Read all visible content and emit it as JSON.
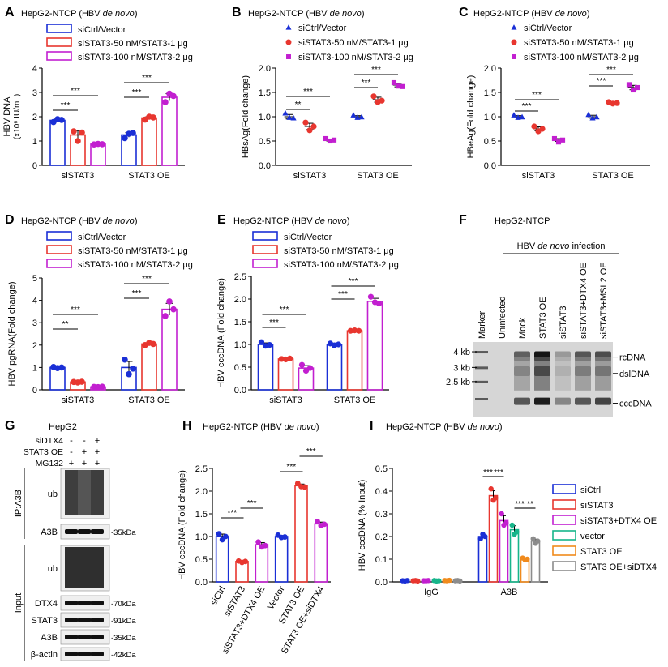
{
  "colors": {
    "blue": "#1a2fd6",
    "red": "#e8362f",
    "magenta": "#c21fd0",
    "green": "#17b58a",
    "orange": "#f08a1c",
    "gray": "#8c8c8c"
  },
  "chart_data": [
    {
      "id": "A",
      "letter": "A",
      "type": "bar",
      "style": "open-bars-dots",
      "title": "HepG2-NTCP (HBV de novo)",
      "ylabel": "HBV DNA (x10^6 IU/mL)",
      "ylabel_l1": "HBV DNA",
      "ylabel_l2": "(x10⁶ IU/mL)",
      "ylim": [
        0,
        4
      ],
      "yticks": [
        0,
        1,
        2,
        3,
        4
      ],
      "groups": [
        "siSTAT3",
        "STAT3 OE"
      ],
      "series": [
        {
          "name": "siCtrl/Vector",
          "color": "blue",
          "values": [
            1.85,
            1.25
          ],
          "points": [
            [
              1.78,
              1.9,
              1.87
            ],
            [
              1.12,
              1.3,
              1.33
            ]
          ]
        },
        {
          "name": "siSTAT3-50 nM/STAT3-1 μg",
          "color": "red",
          "values": [
            1.25,
            1.95
          ],
          "points": [
            [
              1.4,
              1.0,
              1.35
            ],
            [
              1.88,
              2.0,
              1.97
            ]
          ]
        },
        {
          "name": "siSTAT3-100 nM/STAT3-2 μg",
          "color": "magenta",
          "values": [
            0.87,
            2.8
          ],
          "points": [
            [
              0.86,
              0.88,
              0.87
            ],
            [
              2.6,
              2.95,
              2.85
            ]
          ]
        }
      ],
      "sig": [
        {
          "g": 0,
          "a": 0,
          "b": 1,
          "label": "***"
        },
        {
          "g": 0,
          "a": 0,
          "b": 2,
          "label": "***"
        },
        {
          "g": 1,
          "a": 0,
          "b": 1,
          "label": "***"
        },
        {
          "g": 1,
          "a": 0,
          "b": 2,
          "label": "***"
        }
      ]
    },
    {
      "id": "B",
      "letter": "B",
      "type": "scatter",
      "style": "markers",
      "title": "HepG2-NTCP (HBV de novo)",
      "ylabel": "HBsAg(Fold change)",
      "ylim": [
        0,
        2
      ],
      "yticks": [
        0.0,
        0.5,
        1.0,
        1.5,
        2.0
      ],
      "groups": [
        "siSTAT3",
        "STAT3 OE"
      ],
      "series": [
        {
          "name": "siCtrl/Vector",
          "color": "blue",
          "marker": "triangle",
          "values": [
            1.0,
            1.0
          ],
          "points": [
            [
              1.07,
              0.98,
              0.97
            ],
            [
              1.03,
              0.98,
              0.99
            ]
          ]
        },
        {
          "name": "siSTAT3-50 nM/STAT3-1 μg",
          "color": "red",
          "marker": "circle",
          "values": [
            0.8,
            1.35
          ],
          "points": [
            [
              0.88,
              0.72,
              0.8
            ],
            [
              1.42,
              1.3,
              1.33
            ]
          ]
        },
        {
          "name": "siSTAT3-100 nM/STAT3-2 μg",
          "color": "magenta",
          "marker": "square",
          "values": [
            0.52,
            1.65
          ],
          "points": [
            [
              0.55,
              0.5,
              0.52
            ],
            [
              1.7,
              1.63,
              1.62
            ]
          ]
        }
      ],
      "sig": [
        {
          "g": 0,
          "a": 0,
          "b": 1,
          "label": "**"
        },
        {
          "g": 0,
          "a": 0,
          "b": 2,
          "label": "***"
        },
        {
          "g": 1,
          "a": 0,
          "b": 1,
          "label": "***"
        },
        {
          "g": 1,
          "a": 0,
          "b": 2,
          "label": "***"
        }
      ]
    },
    {
      "id": "C",
      "letter": "C",
      "type": "scatter",
      "style": "markers",
      "title": "HepG2-NTCP (HBV de novo)",
      "ylabel": "HBeAg(Fold change)",
      "ylim": [
        0,
        2
      ],
      "yticks": [
        0.0,
        0.5,
        1.0,
        1.5,
        2.0
      ],
      "groups": [
        "siSTAT3",
        "STAT3 OE"
      ],
      "series": [
        {
          "name": "siCtrl/Vector",
          "color": "blue",
          "marker": "triangle",
          "values": [
            1.0,
            1.0
          ],
          "points": [
            [
              1.03,
              0.98,
              0.99
            ],
            [
              1.04,
              0.97,
              0.99
            ]
          ]
        },
        {
          "name": "siSTAT3-50 nM/STAT3-1 μg",
          "color": "red",
          "marker": "circle",
          "values": [
            0.75,
            1.28
          ],
          "points": [
            [
              0.8,
              0.7,
              0.75
            ],
            [
              1.3,
              1.27,
              1.28
            ]
          ]
        },
        {
          "name": "siSTAT3-100 nM/STAT3-2 μg",
          "color": "magenta",
          "marker": "square",
          "values": [
            0.52,
            1.6
          ],
          "points": [
            [
              0.55,
              0.48,
              0.52
            ],
            [
              1.66,
              1.55,
              1.6
            ]
          ]
        }
      ],
      "sig": [
        {
          "g": 0,
          "a": 0,
          "b": 1,
          "label": "***"
        },
        {
          "g": 0,
          "a": 0,
          "b": 2,
          "label": "***"
        },
        {
          "g": 1,
          "a": 0,
          "b": 1,
          "label": "***"
        },
        {
          "g": 1,
          "a": 0,
          "b": 2,
          "label": "***"
        }
      ]
    },
    {
      "id": "D",
      "letter": "D",
      "type": "bar",
      "style": "open-bars-dots",
      "title": "HepG2-NTCP (HBV de novo)",
      "ylabel": "HBV pgRNA(Fold change)",
      "ylim": [
        0,
        5
      ],
      "yticks": [
        0,
        1,
        2,
        3,
        4,
        5
      ],
      "groups": [
        "siSTAT3",
        "STAT3 OE"
      ],
      "series": [
        {
          "name": "siCtrl/Vector",
          "color": "blue",
          "values": [
            1.0,
            1.0
          ],
          "points": [
            [
              1.02,
              0.97,
              1.0
            ],
            [
              1.35,
              0.7,
              0.95
            ]
          ]
        },
        {
          "name": "siSTAT3-50 nM/STAT3-1 μg",
          "color": "red",
          "values": [
            0.35,
            2.05
          ],
          "points": [
            [
              0.35,
              0.33,
              0.36
            ],
            [
              2.0,
              2.1,
              2.05
            ]
          ]
        },
        {
          "name": "siSTAT3-100 nM/STAT3-2 μg",
          "color": "magenta",
          "values": [
            0.13,
            3.6
          ],
          "points": [
            [
              0.13,
              0.12,
              0.14
            ],
            [
              3.3,
              3.95,
              3.6
            ]
          ]
        }
      ],
      "sig": [
        {
          "g": 0,
          "a": 0,
          "b": 1,
          "label": "**"
        },
        {
          "g": 0,
          "a": 0,
          "b": 2,
          "label": "***"
        },
        {
          "g": 1,
          "a": 0,
          "b": 1,
          "label": "***"
        },
        {
          "g": 1,
          "a": 0,
          "b": 2,
          "label": "***"
        }
      ]
    },
    {
      "id": "E",
      "letter": "E",
      "type": "bar",
      "style": "open-bars-dots",
      "title": "HepG2-NTCP (HBV de novo)",
      "ylabel": "HBV cccDNA (Fold change)",
      "ylim": [
        0,
        2.5
      ],
      "yticks": [
        0.0,
        0.5,
        1.0,
        1.5,
        2.0,
        2.5
      ],
      "groups": [
        "siSTAT3",
        "STAT3 OE"
      ],
      "series": [
        {
          "name": "siCtrl/Vector",
          "color": "blue",
          "values": [
            1.0,
            1.0
          ],
          "points": [
            [
              1.05,
              0.97,
              0.99
            ],
            [
              1.02,
              0.98,
              1.0
            ]
          ]
        },
        {
          "name": "siSTAT3-50 nM/STAT3-1 μg",
          "color": "red",
          "values": [
            0.68,
            1.3
          ],
          "points": [
            [
              0.68,
              0.67,
              0.69
            ],
            [
              1.3,
              1.31,
              1.3
            ]
          ]
        },
        {
          "name": "siSTAT3-100 nM/STAT3-2 μg",
          "color": "magenta",
          "values": [
            0.48,
            1.95
          ],
          "points": [
            [
              0.55,
              0.42,
              0.48
            ],
            [
              2.05,
              1.93,
              1.9
            ]
          ]
        }
      ],
      "sig": [
        {
          "g": 0,
          "a": 0,
          "b": 1,
          "label": "***"
        },
        {
          "g": 0,
          "a": 0,
          "b": 2,
          "label": "***"
        },
        {
          "g": 1,
          "a": 0,
          "b": 1,
          "label": "***"
        },
        {
          "g": 1,
          "a": 0,
          "b": 2,
          "label": "***"
        }
      ]
    },
    {
      "id": "H",
      "letter": "H",
      "type": "bar",
      "style": "open-bars-dots",
      "title": "HepG2-NTCP (HBV de novo)",
      "ylabel": "HBV cccDNA (Fold change)",
      "ylim": [
        0,
        2.5
      ],
      "yticks": [
        0.0,
        0.5,
        1.0,
        1.5,
        2.0,
        2.5
      ],
      "categories": [
        "siCtrl",
        "siSTAT3",
        "siSTAT3+DTX4 OE",
        "Vector",
        "STAT3 OE",
        "STAT3 OE+siDTX4"
      ],
      "series": [
        {
          "name": "values",
          "colors": [
            "blue",
            "red",
            "magenta",
            "blue",
            "red",
            "magenta"
          ],
          "values": [
            1.0,
            0.45,
            0.82,
            1.0,
            2.12,
            1.28
          ],
          "points": [
            [
              1.06,
              0.93,
              1.0
            ],
            [
              0.46,
              0.43,
              0.45
            ],
            [
              0.88,
              0.77,
              0.8
            ],
            [
              1.03,
              0.98,
              0.99
            ],
            [
              2.17,
              2.1,
              2.09
            ],
            [
              1.33,
              1.24,
              1.27
            ]
          ]
        }
      ],
      "sig": [
        {
          "a": 0,
          "b": 1,
          "label": "***"
        },
        {
          "a": 1,
          "b": 2,
          "label": "***"
        },
        {
          "a": 3,
          "b": 4,
          "label": "***"
        },
        {
          "a": 4,
          "b": 5,
          "label": "***"
        }
      ]
    },
    {
      "id": "I",
      "letter": "I",
      "type": "bar",
      "style": "open-bars-dots",
      "title": "HepG2-NTCP (HBV de novo)",
      "ylabel": "HBV cccDNA (% Input)",
      "ylim": [
        0,
        0.5
      ],
      "yticks": [
        0.0,
        0.1,
        0.2,
        0.3,
        0.4,
        0.5
      ],
      "groups": [
        "IgG",
        "A3B"
      ],
      "series": [
        {
          "name": "siCtrl",
          "color": "blue",
          "values": [
            0.005,
            0.2
          ],
          "points": [
            [
              0.005,
              0.004,
              0.006
            ],
            [
              0.19,
              0.21,
              0.2
            ]
          ]
        },
        {
          "name": "siSTAT3",
          "color": "red",
          "values": [
            0.005,
            0.38
          ],
          "points": [
            [
              0.005,
              0.006,
              0.004
            ],
            [
              0.41,
              0.36,
              0.37
            ]
          ]
        },
        {
          "name": "siSTAT3+DTX4 OE",
          "color": "magenta",
          "values": [
            0.005,
            0.27
          ],
          "points": [
            [
              0.005,
              0.005,
              0.006
            ],
            [
              0.3,
              0.25,
              0.26
            ]
          ]
        },
        {
          "name": "vector",
          "color": "green",
          "values": [
            0.005,
            0.23
          ],
          "points": [
            [
              0.006,
              0.004,
              0.005
            ],
            [
              0.25,
              0.21,
              0.22
            ]
          ]
        },
        {
          "name": "STAT3 OE",
          "color": "orange",
          "values": [
            0.006,
            0.1
          ],
          "points": [
            [
              0.006,
              0.005,
              0.007
            ],
            [
              0.105,
              0.098,
              0.1
            ]
          ]
        },
        {
          "name": "STAT3 OE+siDTX4",
          "color": "gray",
          "values": [
            0.005,
            0.18
          ],
          "points": [
            [
              0.005,
              0.006,
              0.004
            ],
            [
              0.19,
              0.17,
              0.18
            ]
          ]
        }
      ],
      "sig": [
        {
          "g": 1,
          "a": 0,
          "b": 1,
          "label": "***"
        },
        {
          "g": 1,
          "a": 1,
          "b": 2,
          "label": "***"
        },
        {
          "g": 1,
          "a": 3,
          "b": 4,
          "label": "***"
        },
        {
          "g": 1,
          "a": 4,
          "b": 5,
          "label": "**"
        }
      ]
    }
  ],
  "panel_f": {
    "letter": "F",
    "title": "HepG2-NTCP",
    "infection_label": "HBV de novo infection",
    "lanes": [
      "Marker",
      "Uninfected",
      "Mock",
      "STAT3 OE",
      "siSTAT3",
      "siSTAT3+DTX4 OE",
      "siSTAT3+MSL2 OE"
    ],
    "markers": [
      "4 kb",
      "3 kb",
      "2.5 kb"
    ],
    "bands": [
      "rcDNA",
      "dslDNA",
      "cccDNA"
    ],
    "band_intensity": [
      [
        0.0,
        0.0,
        0.0
      ],
      [
        0.0,
        0.0,
        0.0
      ],
      [
        0.55,
        0.5,
        0.6
      ],
      [
        0.95,
        0.9,
        0.9
      ],
      [
        0.25,
        0.2,
        0.35
      ],
      [
        0.6,
        0.55,
        0.6
      ],
      [
        0.65,
        0.6,
        0.7
      ]
    ]
  },
  "panel_g": {
    "letter": "G",
    "title": "HepG2",
    "conditions": [
      {
        "label": "siDTX4",
        "signs": [
          "-",
          "-",
          "+"
        ]
      },
      {
        "label": "STAT3 OE",
        "signs": [
          "-",
          "+",
          "+"
        ]
      },
      {
        "label": "MG132",
        "signs": [
          "+",
          "+",
          "+"
        ]
      }
    ],
    "section_ip": "IP:A3B",
    "section_input": "Input",
    "blots": [
      {
        "label": "ub",
        "size": "",
        "section": "ip"
      },
      {
        "label": "A3B",
        "size": "-35kDa",
        "section": "ip"
      },
      {
        "label": "ub",
        "size": "",
        "section": "input"
      },
      {
        "label": "DTX4",
        "size": "-70kDa",
        "section": "input"
      },
      {
        "label": "STAT3",
        "size": "-91kDa",
        "section": "input"
      },
      {
        "label": "A3B",
        "size": "-35kDa",
        "section": "input"
      },
      {
        "label": "β-actin",
        "size": "-42kDa",
        "section": "input"
      }
    ]
  }
}
